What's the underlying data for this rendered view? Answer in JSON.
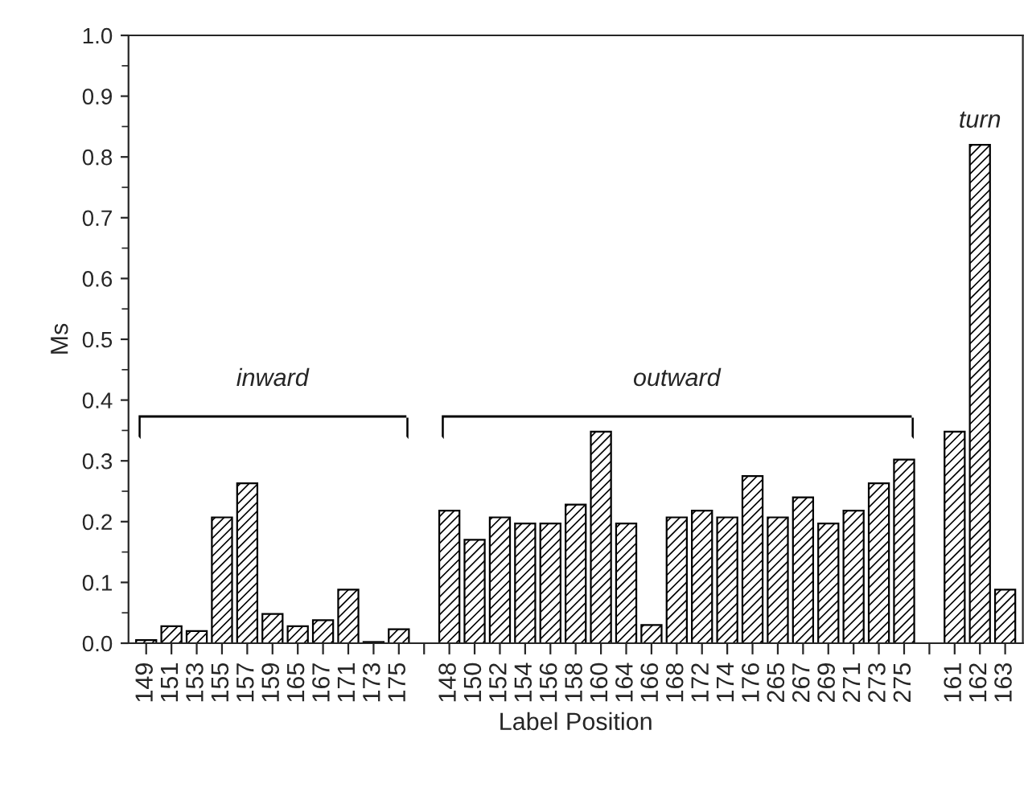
{
  "chart_data": {
    "type": "bar",
    "xlabel": "Label Position",
    "ylabel": "Ms",
    "categories": [
      "149",
      "151",
      "153",
      "155",
      "157",
      "159",
      "165",
      "167",
      "171",
      "173",
      "175",
      null,
      "148",
      "150",
      "152",
      "154",
      "156",
      "158",
      "160",
      "164",
      "166",
      "168",
      "172",
      "174",
      "176",
      "265",
      "267",
      "269",
      "271",
      "273",
      "275",
      null,
      "161",
      "162",
      "163"
    ],
    "series": [
      {
        "color": "#000000",
        "values": [
          0.005,
          0.028,
          0.02,
          0.207,
          0.263,
          0.048,
          0.028,
          0.038,
          0.088,
          0.002,
          0.023,
          null,
          0.218,
          0.17,
          0.207,
          0.197,
          0.197,
          0.228,
          0.348,
          0.197,
          0.03,
          0.207,
          0.218,
          0.207,
          0.275,
          0.207,
          0.24,
          0.197,
          0.218,
          0.263,
          0.302,
          null,
          0.348,
          0.82,
          0.088
        ]
      }
    ],
    "annotations": [
      "inward",
      "outward",
      "turn"
    ],
    "ylim": [
      0,
      1.0
    ],
    "yticks": [
      {
        "value": 0,
        "label": "0.0"
      },
      {
        "value": 0.1,
        "label": "0.1"
      },
      {
        "value": 0.2,
        "label": "0.2"
      },
      {
        "value": 0.3,
        "label": "0.3"
      },
      {
        "value": 0.4,
        "label": "0.4"
      },
      {
        "value": 0.5,
        "label": "0.5"
      },
      {
        "value": 0.6,
        "label": "0.6"
      },
      {
        "value": 0.7,
        "label": "0.7"
      },
      {
        "value": 0.8,
        "label": "0.8"
      },
      {
        "value": 0.9,
        "label": "0.9"
      },
      {
        "value": 1.0,
        "label": "1.0"
      }
    ],
    "grid": false
  }
}
